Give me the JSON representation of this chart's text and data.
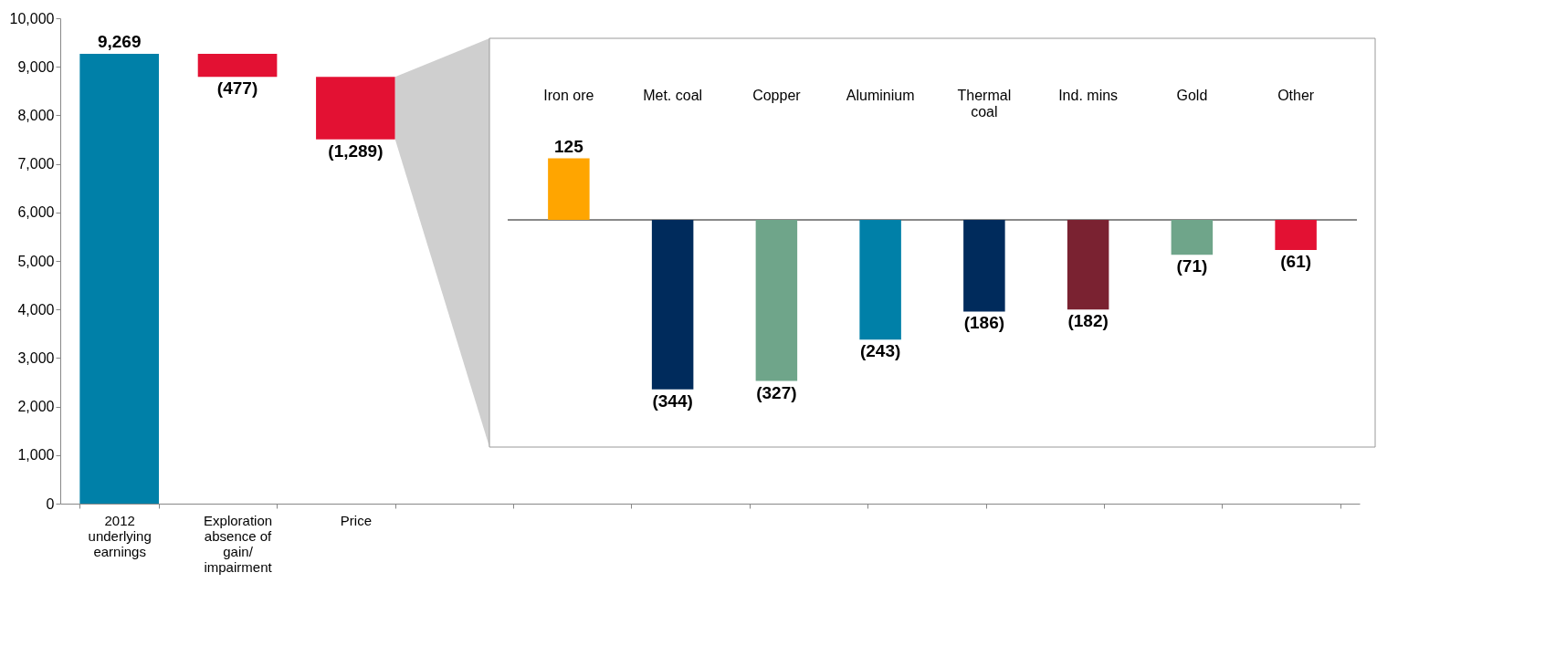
{
  "chart_data": [
    {
      "type": "bar",
      "categories": [
        "2012 underlying earnings",
        "Exploration absence of gain/ impairment",
        "Price",
        null,
        null,
        null,
        null,
        null,
        null,
        null,
        null
      ],
      "values": [
        9269,
        -477,
        -1289,
        null,
        null,
        null,
        null,
        null,
        null,
        null,
        null
      ],
      "base": [
        0,
        9269,
        8792,
        null,
        null,
        null,
        null,
        null,
        null,
        null,
        null
      ],
      "colors": [
        "#0080a8",
        "#e31133",
        "#e31133",
        null,
        null,
        null,
        null,
        null,
        null,
        null,
        null
      ],
      "value_labels": [
        "9,269",
        "(477)",
        "(1,289)",
        null,
        null,
        null,
        null,
        null,
        null,
        null,
        null
      ],
      "ylim": [
        0,
        10000
      ],
      "yticks": [
        0,
        {
          "value": 1000,
          "label": "1,000"
        },
        {
          "value": 2000,
          "label": "2,000"
        },
        {
          "value": 3000,
          "label": "3,000"
        },
        {
          "value": 4000,
          "label": "4,000"
        },
        {
          "value": 5000,
          "label": "5,000"
        },
        {
          "value": 6000,
          "label": "6,000"
        },
        {
          "value": 7000,
          "label": "7,000"
        },
        {
          "value": 8000,
          "label": "8,000"
        },
        {
          "value": 9000,
          "label": "9,000"
        },
        {
          "value": 10000,
          "label": "10,000"
        }
      ],
      "grid": false
    },
    {
      "type": "bar",
      "categories": [
        "Iron ore",
        "Met. coal",
        "Copper",
        "Aluminium",
        "Thermal coal",
        "Ind. mins",
        "Gold",
        "Other"
      ],
      "values": [
        125,
        -344,
        -327,
        -243,
        -186,
        -182,
        -71,
        -61
      ],
      "colors": [
        "#ffa500",
        "#002b5c",
        "#6fa58a",
        "#0080a8",
        "#002b5c",
        "#7a2231",
        "#6fa58a",
        "#e31133"
      ],
      "value_labels": [
        "125",
        "(344)",
        "(327)",
        "(243)",
        "(186)",
        "(182)",
        "(71)",
        "(61)"
      ]
    }
  ]
}
